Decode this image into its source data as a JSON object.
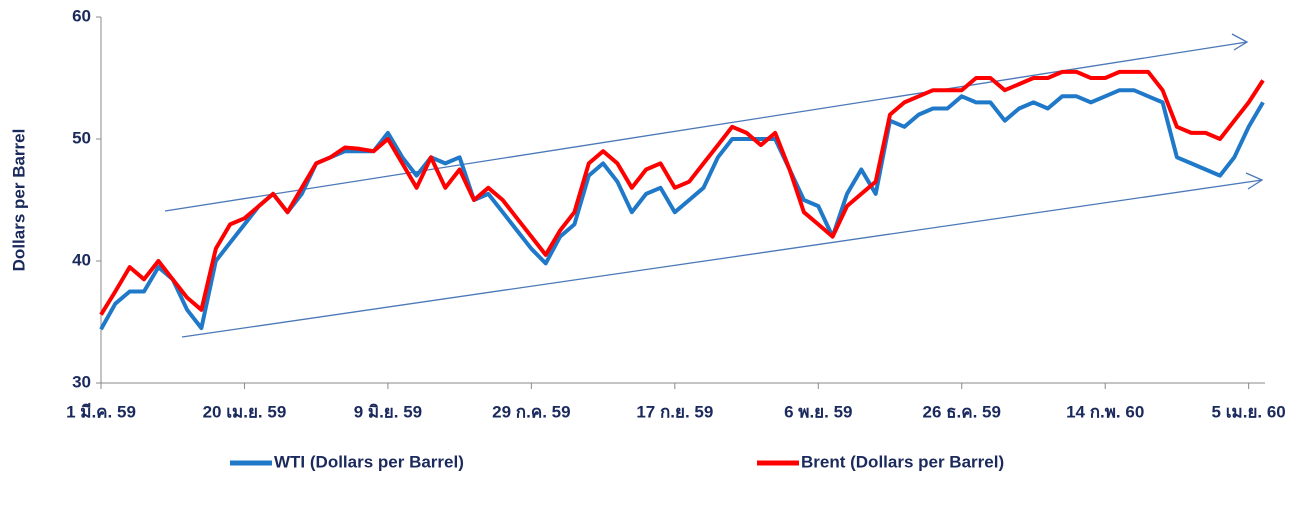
{
  "chart_data": {
    "type": "line",
    "y_label": "Dollars per Barrel",
    "categories": [
      "1 มี.ค. 59",
      null,
      null,
      null,
      null,
      null,
      null,
      null,
      null,
      null,
      "20 เม.ย. 59",
      null,
      null,
      null,
      null,
      null,
      null,
      null,
      null,
      null,
      "9 มิ.ย. 59",
      null,
      null,
      null,
      null,
      null,
      null,
      null,
      null,
      null,
      "29 ก.ค. 59",
      null,
      null,
      null,
      null,
      null,
      null,
      null,
      null,
      null,
      "17 ก.ย. 59",
      null,
      null,
      null,
      null,
      null,
      null,
      null,
      null,
      null,
      "6 พ.ย. 59",
      null,
      null,
      null,
      null,
      null,
      null,
      null,
      null,
      null,
      "26 ธ.ค. 59",
      null,
      null,
      null,
      null,
      null,
      null,
      null,
      null,
      null,
      "14 ก.พ. 60",
      null,
      null,
      null,
      null,
      null,
      null,
      null,
      null,
      null,
      "5 เม.ย. 60",
      null
    ],
    "series": [
      {
        "name": "WTI  (Dollars per Barrel)",
        "color": "#1f78c8",
        "values": [
          34.4,
          36.5,
          37.5,
          37.5,
          39.5,
          38.5,
          36,
          34.5,
          40,
          41.5,
          43,
          44.5,
          45.5,
          44,
          45.5,
          48,
          48.5,
          49,
          49,
          49,
          50.5,
          48.5,
          47,
          48.5,
          48,
          48.5,
          45,
          45.5,
          44,
          42.5,
          41,
          39.8,
          42,
          43,
          47,
          48,
          46.5,
          44,
          45.5,
          46,
          44,
          45,
          46,
          48.5,
          50,
          50,
          50,
          50,
          47.5,
          45,
          44.5,
          42,
          45.5,
          47.5,
          45.5,
          51.5,
          51,
          52,
          52.5,
          52.5,
          53.5,
          53,
          53,
          51.5,
          52.5,
          53,
          52.5,
          53.5,
          53.5,
          53,
          53.5,
          54,
          54,
          53.5,
          53,
          48.5,
          48,
          47.5,
          47,
          48.5,
          51,
          53
        ]
      },
      {
        "name": "Brent (Dollars per Barrel)",
        "color": "#ff0000",
        "values": [
          35.6,
          37.5,
          39.5,
          38.5,
          40,
          38.5,
          37,
          36,
          41,
          43,
          43.5,
          44.5,
          45.5,
          44,
          46,
          48,
          48.5,
          49.3,
          49.2,
          49,
          50,
          48,
          46,
          48.5,
          46,
          47.5,
          45,
          46,
          45,
          43.5,
          42,
          40.5,
          42.5,
          44,
          48,
          49,
          48,
          46,
          47.5,
          48,
          46,
          46.5,
          48,
          49.5,
          51,
          50.5,
          49.5,
          50.5,
          47.5,
          44,
          43,
          42,
          44.5,
          45.5,
          46.5,
          52,
          53,
          53.5,
          54,
          54,
          54,
          55,
          55,
          54,
          54.5,
          55,
          55,
          55.5,
          55.5,
          55,
          55,
          55.5,
          55.5,
          55.5,
          54,
          51,
          50.5,
          50.5,
          50,
          51.5,
          53,
          54.8
        ]
      }
    ],
    "ylim": [
      30,
      60
    ],
    "yticks": [
      30,
      40,
      50,
      60
    ],
    "grid": false,
    "legend": "bottom"
  }
}
